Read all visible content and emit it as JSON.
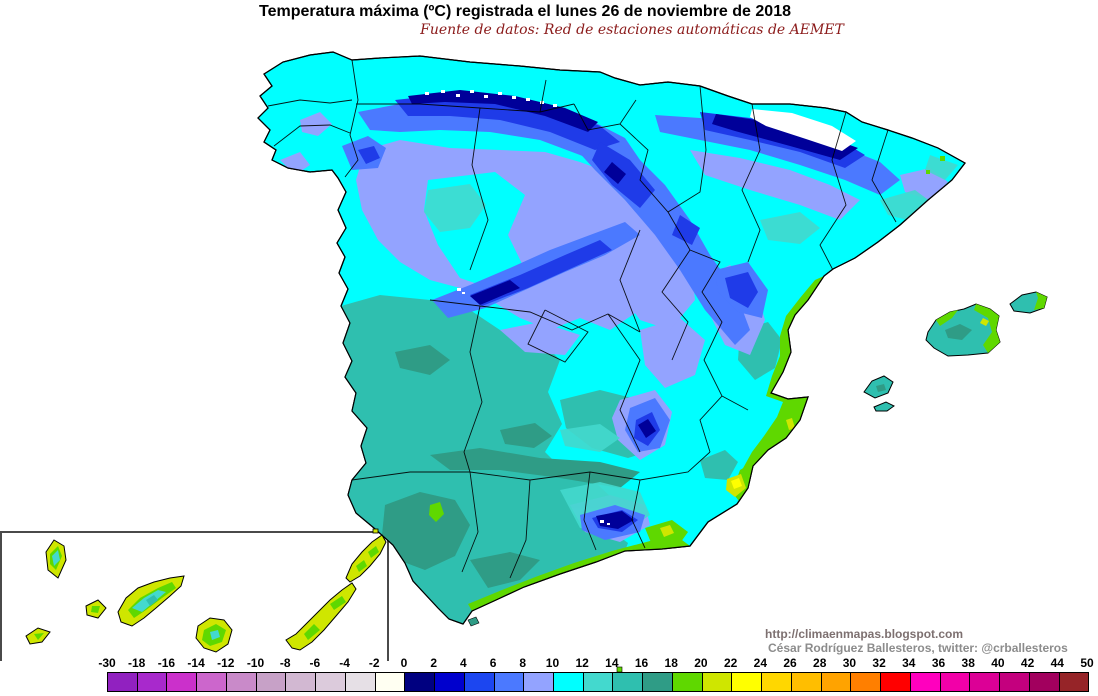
{
  "title": "Temperatura máxima (ºC) registrada el lunes 26 de noviembre de 2018",
  "subtitle": "Fuente de datos: Red de estaciones automáticas de AEMET",
  "credits": {
    "line1": "http://climaenmapas.blogspot.com",
    "line2": "César Rodríguez Ballesteros, twitter: @crballesteros"
  },
  "map": {
    "region": "Spain with Balearic Islands and Canary Islands inset",
    "sea_color": "#FFFFFF",
    "border_color": "#000000",
    "inset_border_color": "#4a4a4a"
  },
  "scale": {
    "unit": "ºC",
    "labels": [
      "-30",
      "-18",
      "-16",
      "-14",
      "-12",
      "-10",
      "-8",
      "-6",
      "-4",
      "-2",
      "0",
      "2",
      "4",
      "6",
      "8",
      "10",
      "12",
      "14",
      "16",
      "18",
      "20",
      "22",
      "24",
      "26",
      "28",
      "30",
      "32",
      "34",
      "36",
      "38",
      "40",
      "42",
      "44",
      "50"
    ],
    "cell_colors": [
      "#9121C0",
      "#A829CC",
      "#CB30CB",
      "#CC66CC",
      "#C98AC9",
      "#C7A1C7",
      "#D2B8D2",
      "#DCCBDC",
      "#E6E0E6",
      "#FFFFF2",
      "#000080",
      "#0000CD",
      "#1C46F0",
      "#4B79FF",
      "#93A3FF",
      "#00FFFF",
      "#43D9CE",
      "#2FBFAF",
      "#2F9C86",
      "#5FD800",
      "#CFE600",
      "#FFFF00",
      "#FFD700",
      "#FFBE00",
      "#FFA300",
      "#FF7F00",
      "#FF0000",
      "#FF00BE",
      "#F200A8",
      "#DC0096",
      "#C4007E",
      "#A2005E",
      "#962428"
    ]
  }
}
